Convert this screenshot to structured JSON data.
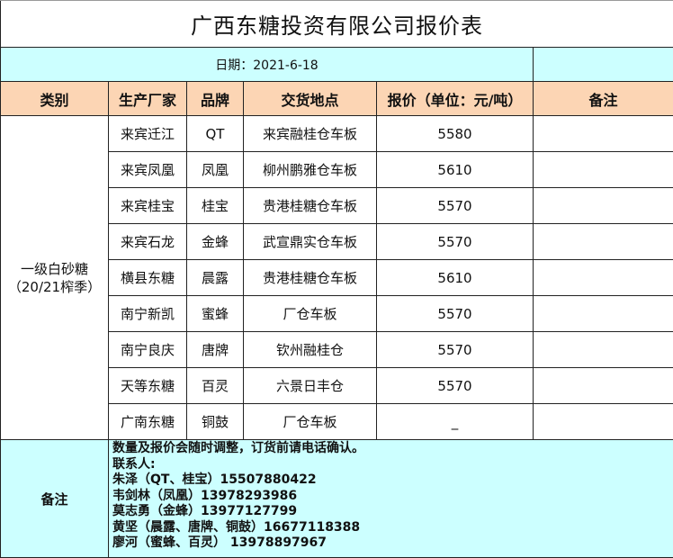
{
  "title": "广西东糖投资有限公司报价表",
  "date_label": "日期：2021-6-18",
  "headers": [
    "类别",
    "生产厂家",
    "品牌",
    "交货地点",
    "报价（单位：元/吨）",
    "备注"
  ],
  "category": {
    "line1": "一级白砂糖",
    "line2": "（20/21榨季）"
  },
  "rows": [
    {
      "factory": "来宾迁江",
      "brand": "QT",
      "location": "来宾融桂仓车板",
      "price": "5580"
    },
    {
      "factory": "来宾凤凰",
      "brand": "凤凰",
      "location": "柳州鹏雅仓车板",
      "price": "5610"
    },
    {
      "factory": "来宾桂宝",
      "brand": "桂宝",
      "location": "贵港桂糖仓车板",
      "price": "5570"
    },
    {
      "factory": "来宾石龙",
      "brand": "金蜂",
      "location": "武宣鼎实仓车板",
      "price": "5570"
    },
    {
      "factory": "横县东糖",
      "brand": "晨露",
      "location": "贵港桂糖仓车板",
      "price": "5610"
    },
    {
      "factory": "南宁新凯",
      "brand": "蜜蜂",
      "location": "厂仓车板",
      "price": "5570"
    },
    {
      "factory": "南宁良庆",
      "brand": "唐牌",
      "location": "钦州融桂仓",
      "price": "5570"
    },
    {
      "factory": "天等东糖",
      "brand": "百灵",
      "location": "六景日丰仓",
      "price": "5570"
    },
    {
      "factory": "广南东糖",
      "brand": "铜鼓",
      "location": "厂仓车板",
      "price": "_"
    }
  ],
  "footer": {
    "label": "备注",
    "lines": [
      "数量及报价会随时调整，订货前请电话确认。",
      "联系人:",
      "朱泽（QT、桂宝）15507880422",
      "韦剑林（凤凰）13978293986",
      "莫志勇（金蜂）13977127799",
      "黄坚（晨露、唐牌、铜鼓）16677118388",
      "廖河（蜜蜂、百灵） 13978897967"
    ]
  }
}
